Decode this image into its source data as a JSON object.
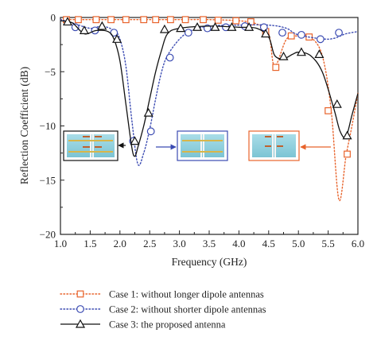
{
  "chart_data": {
    "type": "line",
    "xlabel": "Frequency (GHz)",
    "ylabel": "Reflection Coefficient (dB)",
    "xlim": [
      1.0,
      6.0
    ],
    "ylim": [
      -20,
      0
    ],
    "xticks": [
      "1.0",
      "1.5",
      "2.0",
      "2.5",
      "3.0",
      "3.5",
      "4.0",
      "4.5",
      "5.0",
      "5.5",
      "6.0"
    ],
    "yticks": [
      "0",
      "−5",
      "−10",
      "−15",
      "−20"
    ],
    "grid": false,
    "legend_position": "bottom",
    "series": [
      {
        "name": "Case 1: without longer dipole antennas",
        "color": "#e8632b",
        "line": "dotted",
        "marker": "square",
        "x": [
          1.0,
          1.5,
          2.0,
          2.5,
          3.0,
          3.5,
          4.0,
          4.3,
          4.5,
          4.6,
          4.8,
          5.0,
          5.2,
          5.4,
          5.55,
          5.68,
          5.8,
          5.9,
          6.0
        ],
        "y": [
          -0.2,
          -0.2,
          -0.2,
          -0.2,
          -0.2,
          -0.2,
          -0.3,
          -0.6,
          -1.5,
          -4.5,
          -2.0,
          -1.7,
          -1.8,
          -3.5,
          -8.5,
          -16.8,
          -12.8,
          -10.0,
          -7.0
        ],
        "marker_x": [
          1.1,
          1.3,
          1.6,
          1.85,
          2.1,
          2.4,
          2.6,
          2.85,
          3.1,
          3.4,
          3.65,
          3.95,
          4.2,
          4.45,
          4.62,
          4.88,
          5.18,
          5.5,
          5.82
        ],
        "marker_y": [
          -0.2,
          -0.2,
          -0.2,
          -0.2,
          -0.2,
          -0.2,
          -0.2,
          -0.2,
          -0.2,
          -0.2,
          -0.25,
          -0.3,
          -0.4,
          -1.3,
          -4.6,
          -1.7,
          -1.8,
          -8.6,
          -12.6
        ]
      },
      {
        "name": "Case 2: without shorter dipole antennas",
        "color": "#3b4bb2",
        "line": "dotted",
        "marker": "circle",
        "x": [
          1.0,
          1.2,
          1.5,
          1.7,
          1.9,
          2.0,
          2.1,
          2.2,
          2.3,
          2.4,
          2.5,
          2.6,
          2.7,
          2.8,
          3.0,
          3.2,
          3.5,
          4.0,
          4.5,
          4.8,
          5.0,
          5.5,
          5.8,
          6.0
        ],
        "y": [
          -0.2,
          -0.5,
          -1.0,
          -0.8,
          -1.2,
          -2.0,
          -4.5,
          -9.5,
          -13.5,
          -12.5,
          -10.3,
          -7.5,
          -5.0,
          -3.5,
          -2.0,
          -1.2,
          -0.8,
          -0.7,
          -0.7,
          -1.0,
          -1.6,
          -2.0,
          -1.5,
          -1.3
        ],
        "marker_x": [
          1.25,
          1.58,
          1.9,
          2.22,
          2.52,
          2.84,
          3.15,
          3.47,
          3.78,
          4.1,
          4.42,
          4.73,
          5.05,
          5.37,
          5.68
        ],
        "marker_y": [
          -0.9,
          -1.2,
          -1.4,
          -11.4,
          -10.5,
          -3.7,
          -1.4,
          -1.0,
          -0.9,
          -0.8,
          -0.9,
          -1.4,
          -1.6,
          -2.0,
          -1.4
        ]
      },
      {
        "name": "Case 3: the proposed antenna",
        "color": "#111111",
        "line": "solid",
        "marker": "triangle",
        "x": [
          1.0,
          1.2,
          1.4,
          1.6,
          1.8,
          1.9,
          2.0,
          2.1,
          2.2,
          2.25,
          2.3,
          2.4,
          2.5,
          2.6,
          2.7,
          2.8,
          3.0,
          3.5,
          4.0,
          4.3,
          4.5,
          4.6,
          4.75,
          4.9,
          5.0,
          5.2,
          5.4,
          5.6,
          5.7,
          5.8,
          5.9,
          6.0
        ],
        "y": [
          -0.3,
          -0.5,
          -1.5,
          -1.2,
          -1.3,
          -2.0,
          -4.0,
          -8.0,
          -12.0,
          -12.8,
          -12.0,
          -10.0,
          -7.5,
          -5.0,
          -3.0,
          -1.5,
          -1.0,
          -0.8,
          -0.9,
          -1.0,
          -1.8,
          -3.5,
          -3.8,
          -3.4,
          -3.2,
          -3.5,
          -5.0,
          -8.5,
          -10.5,
          -11.0,
          -9.0,
          -7.0
        ],
        "marker_x": [
          1.12,
          1.4,
          1.7,
          1.95,
          2.25,
          2.48,
          2.75,
          3.02,
          3.3,
          3.6,
          3.88,
          4.17,
          4.45,
          4.75,
          5.05,
          5.35,
          5.65,
          5.82
        ],
        "marker_y": [
          -0.4,
          -1.2,
          -0.8,
          -2.0,
          -11.4,
          -8.8,
          -1.1,
          -1.0,
          -0.9,
          -0.9,
          -0.9,
          -0.9,
          -1.5,
          -3.6,
          -3.2,
          -3.4,
          -8.0,
          -10.9
        ]
      }
    ]
  }
}
